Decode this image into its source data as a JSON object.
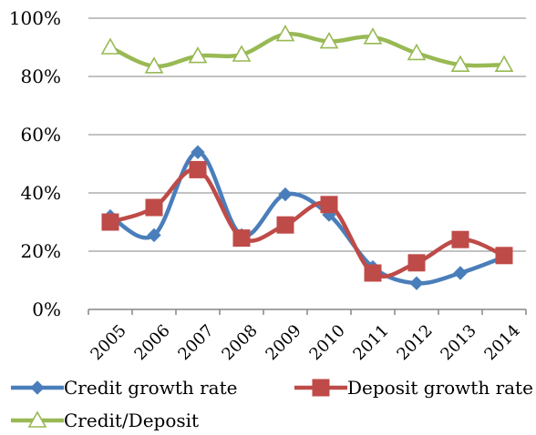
{
  "chart_data": {
    "type": "line",
    "categories": [
      "2005",
      "2006",
      "2007",
      "2008",
      "2009",
      "2010",
      "2011",
      "2012",
      "2013",
      "2014"
    ],
    "y_ticks": [
      "0%",
      "20%",
      "40%",
      "60%",
      "80%",
      "100%"
    ],
    "ylim": [
      0,
      100
    ],
    "grid": true,
    "legend_position": "bottom",
    "series": [
      {
        "name": "Credit growth rate",
        "values": [
          32,
          25.5,
          54,
          25.5,
          39.5,
          32.5,
          14.5,
          9,
          12.5,
          18
        ],
        "color": "#4A7EBB",
        "marker": "diamond"
      },
      {
        "name": "Deposit growth rate",
        "values": [
          30,
          35,
          48,
          24.5,
          29,
          36,
          12.5,
          16,
          24,
          18.5
        ],
        "color": "#BE4B48",
        "marker": "square"
      },
      {
        "name": "Credit/Deposit",
        "values": [
          90,
          83.5,
          87,
          87.5,
          94.5,
          92,
          93.5,
          88,
          84,
          84
        ],
        "color": "#98B954",
        "marker": "triangle-open"
      }
    ]
  }
}
